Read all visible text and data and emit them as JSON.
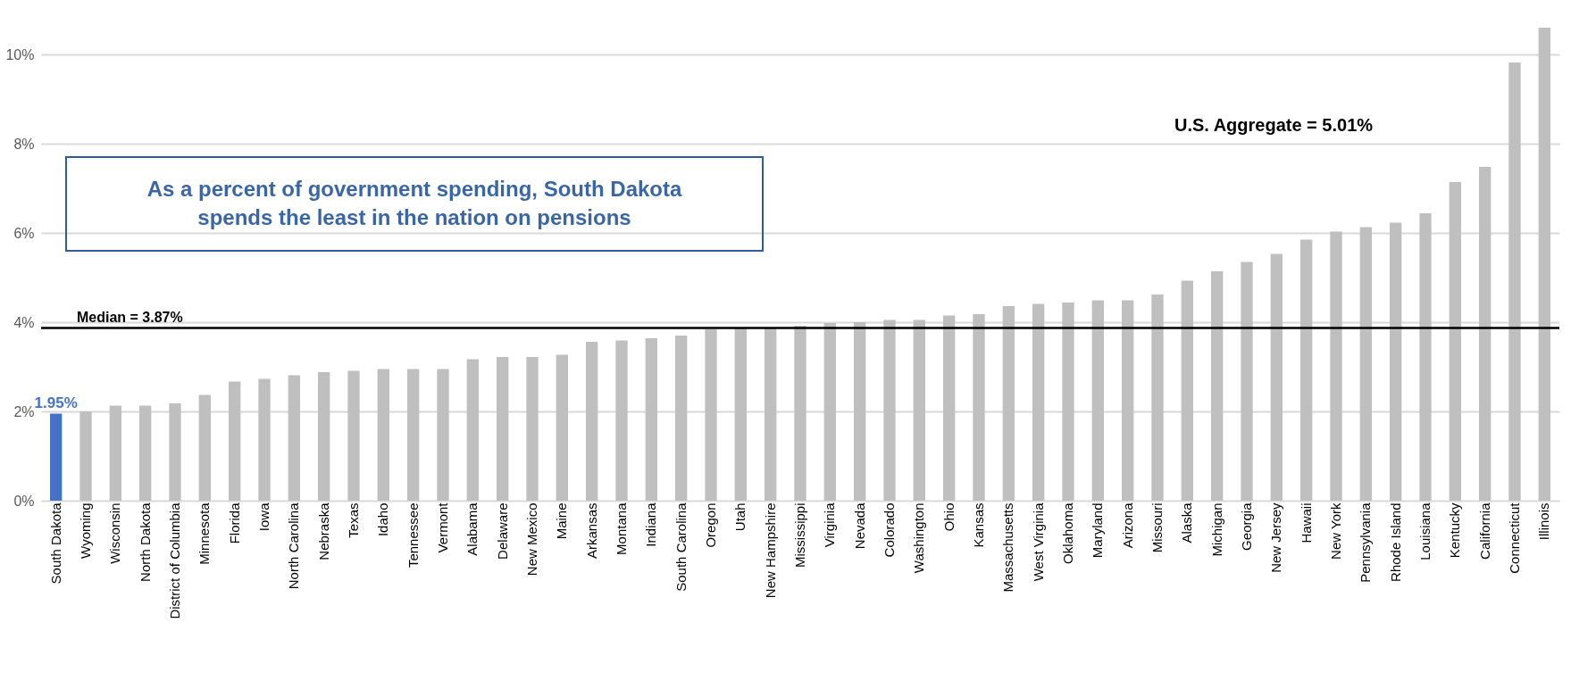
{
  "chart_data": {
    "type": "bar",
    "categories": [
      "South Dakota",
      "Wyoming",
      "Wisconsin",
      "North Dakota",
      "District of Columbia",
      "Minnesota",
      "Florida",
      "Iowa",
      "North Carolina",
      "Nebraska",
      "Texas",
      "Idaho",
      "Tennessee",
      "Vermont",
      "Alabama",
      "Delaware",
      "New Mexico",
      "Maine",
      "Arkansas",
      "Montana",
      "Indiana",
      "South Carolina",
      "Oregon",
      "Utah",
      "New Hampshire",
      "Mississippi",
      "Virginia",
      "Nevada",
      "Colorado",
      "Washington",
      "Ohio",
      "Kansas",
      "Massachusetts",
      "West Virginia",
      "Oklahoma",
      "Maryland",
      "Arizona",
      "Missouri",
      "Alaska",
      "Michigan",
      "Georgia",
      "New Jersey",
      "Hawaii",
      "New York",
      "Pennsylvania",
      "Rhode Island",
      "Louisiana",
      "Kentucky",
      "California",
      "Connecticut",
      "Illinois"
    ],
    "values": [
      1.95,
      2.0,
      2.13,
      2.13,
      2.18,
      2.37,
      2.67,
      2.73,
      2.81,
      2.88,
      2.91,
      2.95,
      2.95,
      2.95,
      3.17,
      3.22,
      3.22,
      3.27,
      3.56,
      3.59,
      3.64,
      3.7,
      3.84,
      3.86,
      3.87,
      3.92,
      3.98,
      4.0,
      4.05,
      4.05,
      4.15,
      4.18,
      4.36,
      4.41,
      4.44,
      4.49,
      4.49,
      4.62,
      4.93,
      5.14,
      5.35,
      5.53,
      5.85,
      6.03,
      6.13,
      6.23,
      6.44,
      7.14,
      7.48,
      9.82,
      10.6
    ],
    "colors": [
      "#4472c4",
      "#bfbfbf",
      "#bfbfbf",
      "#bfbfbf",
      "#bfbfbf",
      "#bfbfbf",
      "#bfbfbf",
      "#bfbfbf",
      "#bfbfbf",
      "#bfbfbf",
      "#bfbfbf",
      "#bfbfbf",
      "#bfbfbf",
      "#bfbfbf",
      "#bfbfbf",
      "#bfbfbf",
      "#bfbfbf",
      "#bfbfbf",
      "#bfbfbf",
      "#bfbfbf",
      "#bfbfbf",
      "#bfbfbf",
      "#bfbfbf",
      "#bfbfbf",
      "#bfbfbf",
      "#bfbfbf",
      "#bfbfbf",
      "#bfbfbf",
      "#bfbfbf",
      "#bfbfbf",
      "#bfbfbf",
      "#bfbfbf",
      "#bfbfbf",
      "#bfbfbf",
      "#bfbfbf",
      "#bfbfbf",
      "#bfbfbf",
      "#bfbfbf",
      "#bfbfbf",
      "#bfbfbf",
      "#bfbfbf",
      "#bfbfbf",
      "#bfbfbf",
      "#bfbfbf",
      "#bfbfbf",
      "#bfbfbf",
      "#bfbfbf",
      "#bfbfbf",
      "#bfbfbf",
      "#bfbfbf",
      "#bfbfbf"
    ],
    "value_labels": [
      "1.95%",
      null,
      null,
      null,
      null,
      null,
      null,
      null,
      null,
      null,
      null,
      null,
      null,
      null,
      null,
      null,
      null,
      null,
      null,
      null,
      null,
      null,
      null,
      null,
      null,
      null,
      null,
      null,
      null,
      null,
      null,
      null,
      null,
      null,
      null,
      null,
      null,
      null,
      null,
      null,
      null,
      null,
      null,
      null,
      null,
      null,
      null,
      null,
      null,
      null,
      null
    ],
    "ylim": [
      0,
      10.6
    ],
    "yticks": [
      {
        "value": 0,
        "label": "0%"
      },
      {
        "value": 2,
        "label": "2%"
      },
      {
        "value": 4,
        "label": "4%"
      },
      {
        "value": 6,
        "label": "6%"
      },
      {
        "value": 8,
        "label": "8%"
      },
      {
        "value": 10,
        "label": "10%"
      }
    ],
    "grid": "y",
    "ref_lines": [
      {
        "axis": "y",
        "value": 3.87,
        "label": "Median = 3.87%",
        "color": "#000000"
      }
    ],
    "annotations": [
      "U.S. Aggregate = 5.01%",
      "As a percent of government spending, South Dakota spends the least in the nation on pensions"
    ]
  }
}
